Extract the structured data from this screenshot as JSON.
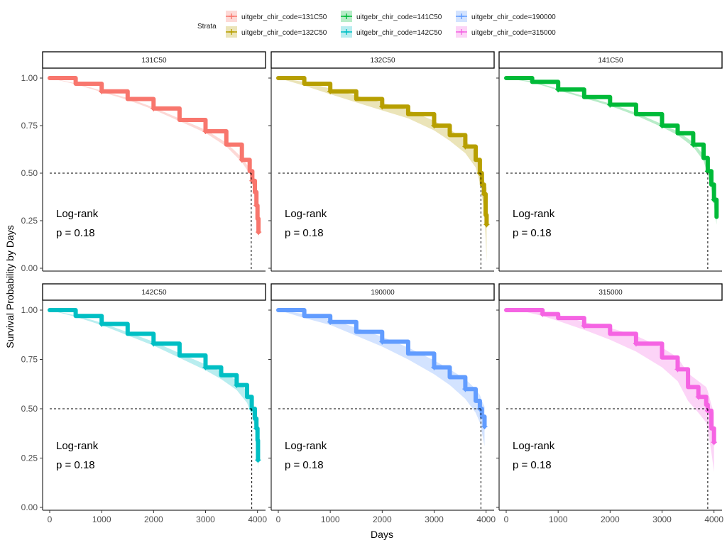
{
  "chart_data": {
    "type": "line",
    "subtype": "kaplan-meier survival curves (faceted)",
    "ylabel": "Survival Probability by Days",
    "xlabel": "Days",
    "xlim": [
      0,
      4100
    ],
    "ylim": [
      0,
      1.0
    ],
    "xticks": [
      0,
      1000,
      2000,
      3000,
      4000
    ],
    "yticks": [
      0.0,
      0.25,
      0.5,
      0.75,
      1.0
    ],
    "ytick_labels": [
      "0.00",
      "0.25",
      "0.50",
      "0.75",
      "1.00"
    ],
    "median_reference_y": 0.5,
    "legend": {
      "title": "Strata",
      "placement": "top",
      "entries": [
        "uitgebr_chir_code=131C50",
        "uitgebr_chir_code=132C50",
        "uitgebr_chir_code=141C50",
        "uitgebr_chir_code=142C50",
        "uitgebr_chir_code=190000",
        "uitgebr_chir_code=315000"
      ]
    },
    "annotation": {
      "line1": "Log-rank",
      "line2": "p = 0.18"
    },
    "series": [
      {
        "name": "131C50",
        "color": "#F8766D",
        "median_x": 3880,
        "x": [
          0,
          500,
          1000,
          1500,
          2000,
          2500,
          3000,
          3400,
          3700,
          3850,
          3900,
          3950,
          3980,
          4000,
          4020
        ],
        "y": [
          1.0,
          0.97,
          0.93,
          0.89,
          0.84,
          0.78,
          0.72,
          0.65,
          0.57,
          0.51,
          0.46,
          0.4,
          0.33,
          0.26,
          0.19
        ],
        "ci_width": [
          0,
          0.003,
          0.004,
          0.005,
          0.006,
          0.007,
          0.008,
          0.01,
          0.012,
          0.015,
          0.02,
          0.025,
          0.03,
          0.035,
          0.04
        ]
      },
      {
        "name": "132C50",
        "color": "#B79F00",
        "median_x": 3900,
        "x": [
          0,
          500,
          1000,
          1500,
          2000,
          2500,
          3000,
          3300,
          3600,
          3800,
          3880,
          3920,
          3960,
          3990,
          4010
        ],
        "y": [
          1.0,
          0.97,
          0.93,
          0.89,
          0.85,
          0.81,
          0.75,
          0.7,
          0.64,
          0.57,
          0.5,
          0.44,
          0.39,
          0.28,
          0.23
        ],
        "ci_width": [
          0,
          0.01,
          0.015,
          0.018,
          0.02,
          0.022,
          0.025,
          0.03,
          0.035,
          0.04,
          0.05,
          0.06,
          0.08,
          0.12,
          0.2
        ]
      },
      {
        "name": "141C50",
        "color": "#00BA38",
        "median_x": 3880,
        "x": [
          0,
          500,
          1000,
          1500,
          2000,
          2500,
          3000,
          3300,
          3600,
          3800,
          3880,
          3950,
          4000,
          4050
        ],
        "y": [
          1.0,
          0.98,
          0.94,
          0.9,
          0.86,
          0.81,
          0.75,
          0.71,
          0.65,
          0.58,
          0.51,
          0.44,
          0.36,
          0.27
        ],
        "ci_width": [
          0,
          0.003,
          0.004,
          0.005,
          0.006,
          0.007,
          0.008,
          0.01,
          0.012,
          0.015,
          0.02,
          0.025,
          0.03,
          0.04
        ]
      },
      {
        "name": "142C50",
        "color": "#00BFC4",
        "median_x": 3890,
        "x": [
          0,
          500,
          1000,
          1500,
          2000,
          2500,
          3000,
          3300,
          3600,
          3800,
          3890,
          3950,
          3980,
          4000,
          4010
        ],
        "y": [
          1.0,
          0.97,
          0.93,
          0.88,
          0.83,
          0.77,
          0.71,
          0.67,
          0.62,
          0.56,
          0.5,
          0.45,
          0.4,
          0.34,
          0.24
        ],
        "ci_width": [
          0,
          0.004,
          0.006,
          0.008,
          0.01,
          0.012,
          0.015,
          0.02,
          0.025,
          0.03,
          0.035,
          0.04,
          0.05,
          0.06,
          0.08
        ]
      },
      {
        "name": "190000",
        "color": "#619CFF",
        "median_x": 3900,
        "x": [
          0,
          500,
          1000,
          1500,
          2000,
          2500,
          3000,
          3300,
          3600,
          3800,
          3880,
          3920,
          3970
        ],
        "y": [
          1.0,
          0.97,
          0.94,
          0.89,
          0.84,
          0.78,
          0.71,
          0.66,
          0.6,
          0.54,
          0.5,
          0.46,
          0.41
        ],
        "ci_width": [
          0,
          0.01,
          0.015,
          0.02,
          0.025,
          0.03,
          0.035,
          0.04,
          0.05,
          0.06,
          0.07,
          0.08,
          0.1
        ]
      },
      {
        "name": "315000",
        "color": "#F564E3",
        "median_x": 3880,
        "x": [
          0,
          300,
          700,
          1000,
          1500,
          2000,
          2500,
          3000,
          3300,
          3500,
          3700,
          3850,
          3880,
          3950,
          4000
        ],
        "y": [
          1.0,
          1.0,
          0.98,
          0.96,
          0.92,
          0.88,
          0.83,
          0.76,
          0.7,
          0.61,
          0.56,
          0.52,
          0.49,
          0.4,
          0.33
        ],
        "ci_width": [
          0,
          0.004,
          0.01,
          0.015,
          0.02,
          0.03,
          0.04,
          0.05,
          0.06,
          0.07,
          0.08,
          0.09,
          0.1,
          0.12,
          0.15
        ]
      }
    ]
  }
}
